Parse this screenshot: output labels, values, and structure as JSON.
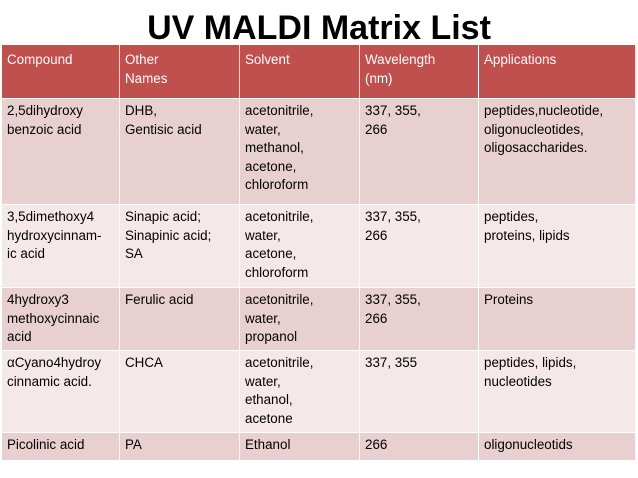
{
  "title": "UV MALDI Matrix List",
  "table": {
    "headers": [
      "Compound",
      "Other\nNames",
      "Solvent",
      "Wavelength\n(nm)",
      "Applications"
    ],
    "rows": [
      [
        "2,5dihydroxy\nbenzoic acid",
        "DHB,\nGentisic acid",
        "acetonitrile,\nwater,\nmethanol,\nacetone,\nchloroform",
        "337, 355,\n266",
        "peptides,nucleotide,\noligonucleotides,\noligosaccharides."
      ],
      [
        "3,5dimethoxy4\nhydroxycinnam-\nic acid",
        "Sinapic acid;\nSinapinic acid;\nSA",
        "acetonitrile,\nwater,\nacetone,\nchloroform",
        "337, 355,\n266",
        "peptides,\nproteins, lipids"
      ],
      [
        "4hydroxy3\nmethoxycinnaic\nacid",
        "Ferulic acid",
        "acetonitrile,\nwater,\npropanol",
        "337, 355,\n266",
        "Proteins"
      ],
      [
        "αCyano4hydroy\ncinnamic acid.",
        "CHCA",
        "acetonitrile,\nwater,\nethanol,\nacetone",
        "337, 355",
        "peptides, lipids,\nnucleotides"
      ],
      [
        "Picolinic acid",
        "PA",
        "Ethanol",
        "266",
        "oligonucleotids"
      ]
    ]
  }
}
